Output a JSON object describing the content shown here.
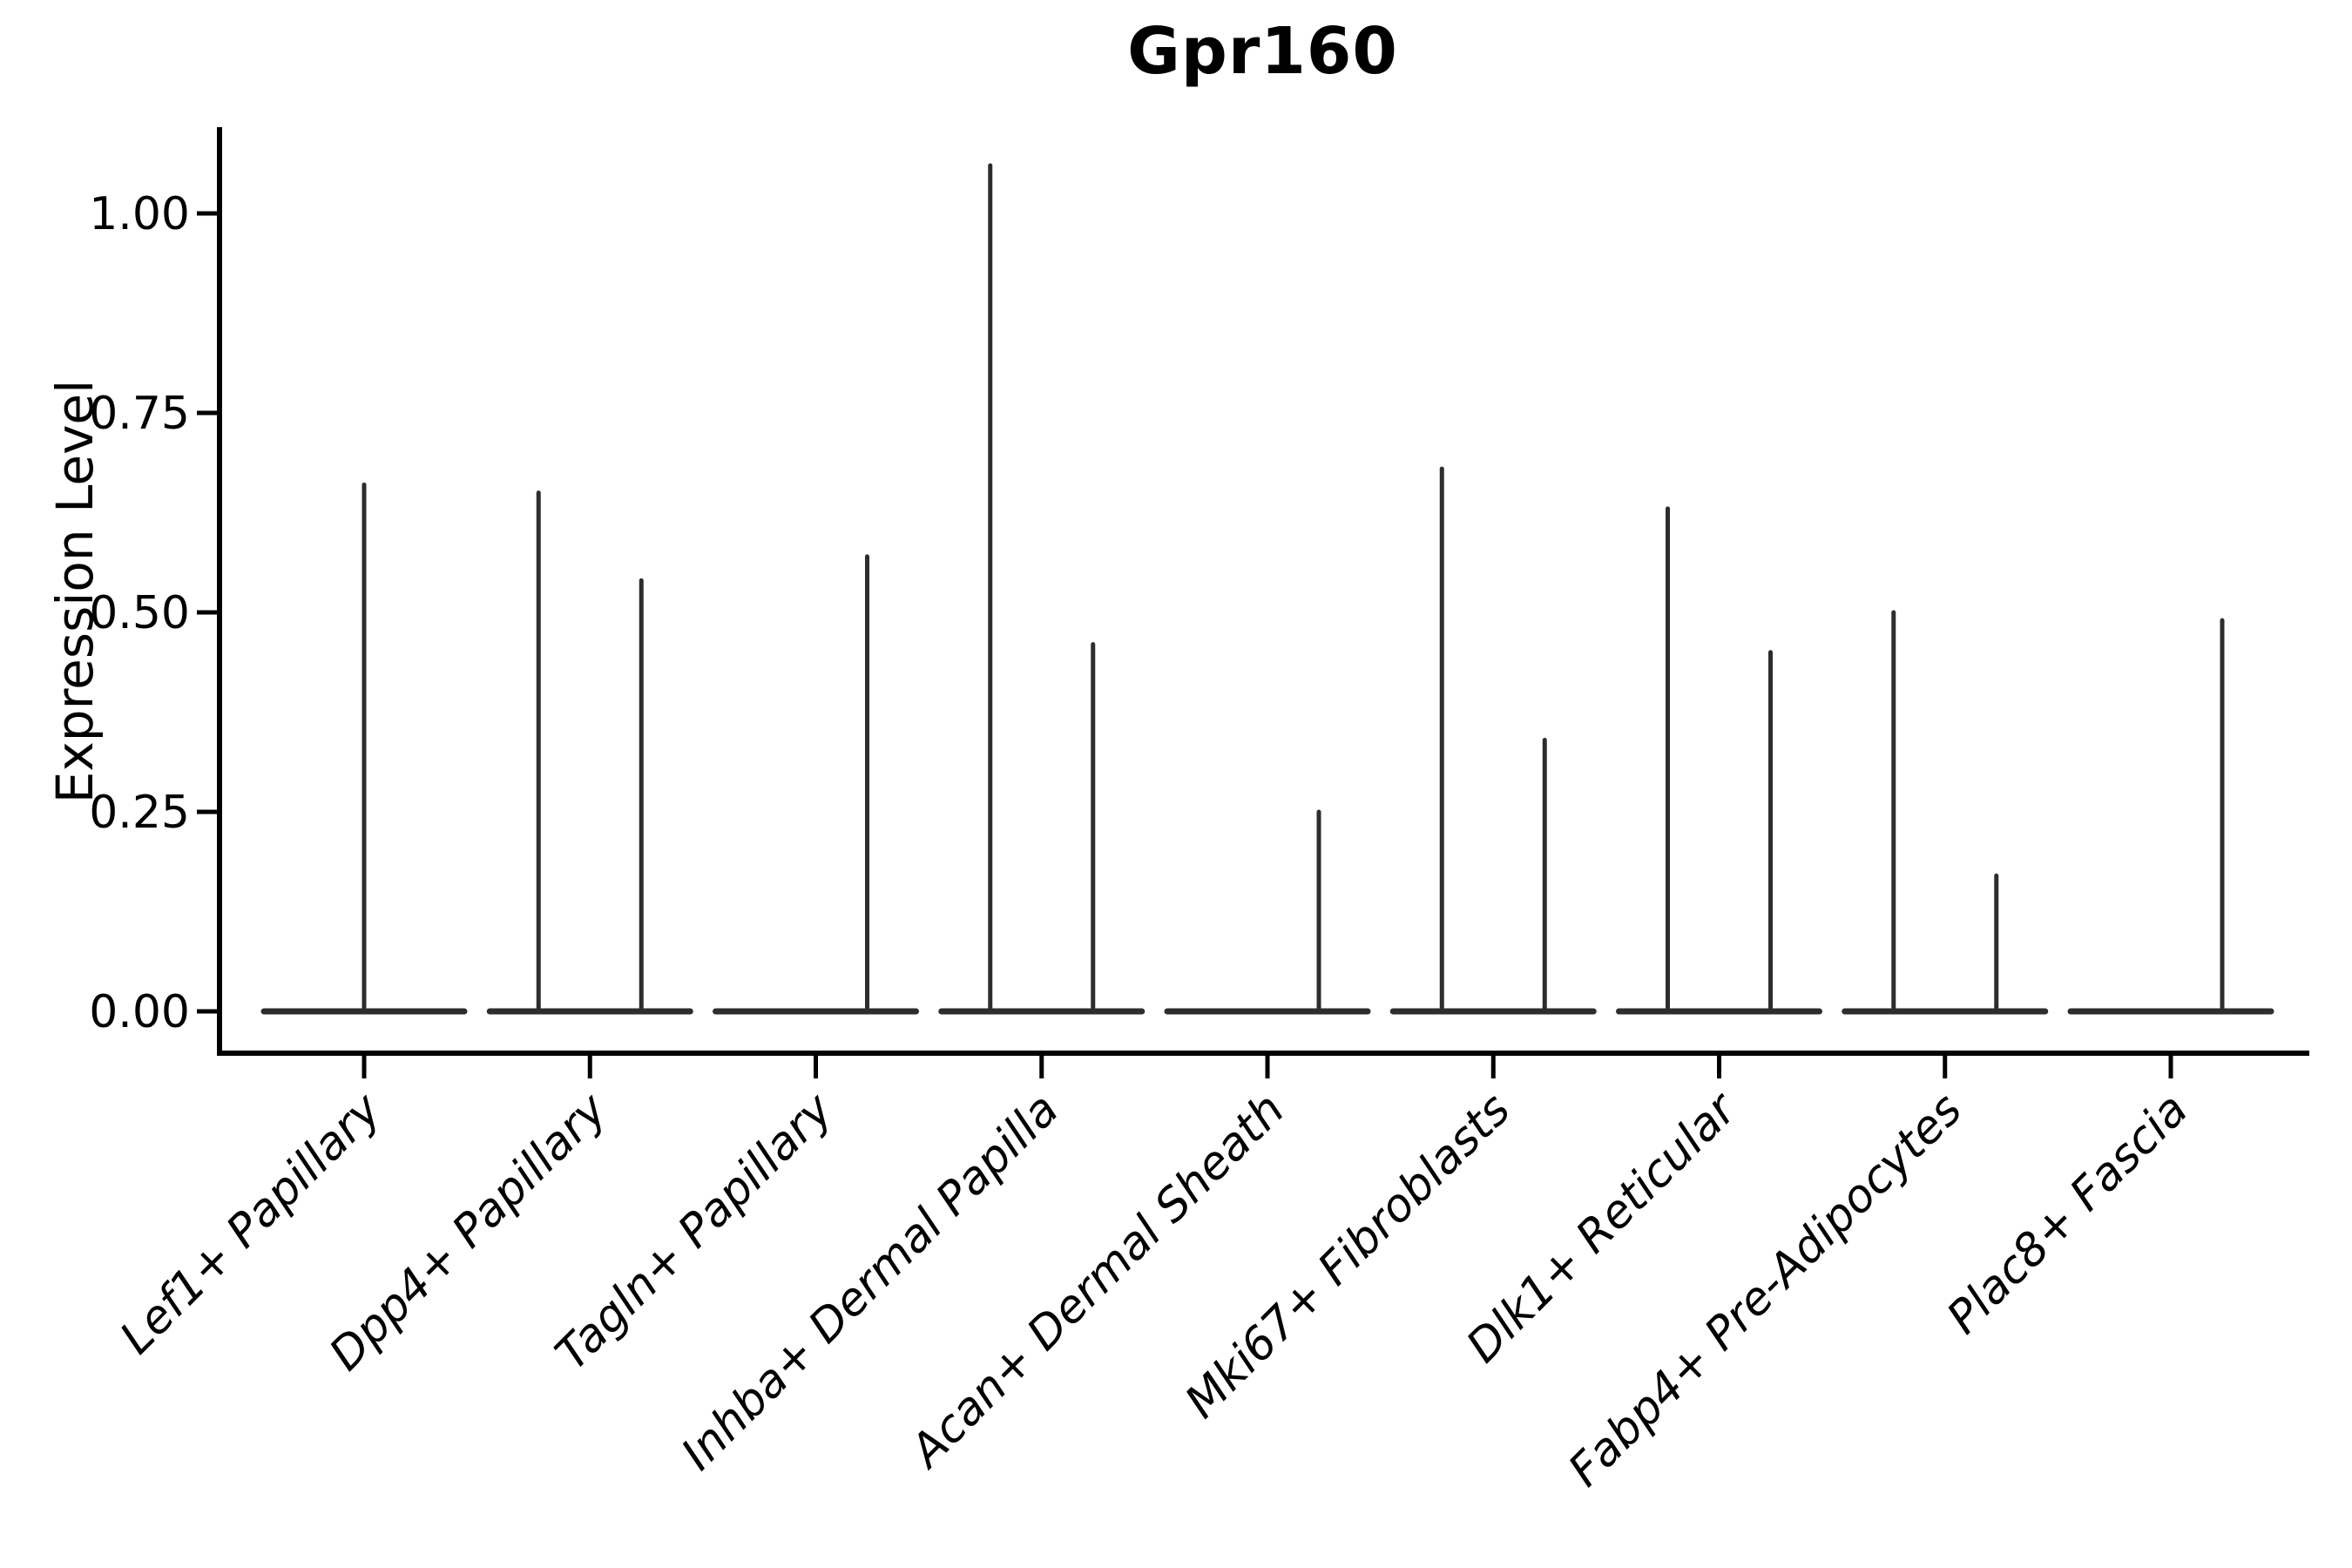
{
  "title": "Gpr160",
  "y_axis": {
    "label": "Expression Level",
    "tick_labels": [
      "0.00",
      "0.25",
      "0.50",
      "0.75",
      "1.00"
    ]
  },
  "chart_data": {
    "type": "violin",
    "title": "Gpr160",
    "xlabel": "",
    "ylabel": "Expression Level",
    "ylim": [
      -0.05,
      1.11
    ],
    "yticks": [
      0,
      0.25,
      0.5,
      0.75,
      1.0
    ],
    "ytick_labels": [
      "0.00",
      "0.25",
      "0.50",
      "0.75",
      "1.00"
    ],
    "grid": false,
    "legend": false,
    "x_tick_rotation": 45,
    "categories": [
      "Lef1+ Papillary",
      "Dpp4+ Papillary",
      "Tagln+ Papillary",
      "Inhba+ Dermal Papilla",
      "Acan+ Dermal Sheath",
      "Mki67+ Fibroblasts",
      "Dlk1+ Reticular",
      "Fabp4+ Pre-Adipocytes",
      "Plac8+ Fascia"
    ],
    "description": "Sparse expression violins: each category shows a flat density base at 0 with thin spikes rising to the maximum expression of each split group.",
    "violins": [
      {
        "category": "Lef1+ Papillary",
        "groups": [
          {
            "position": "center",
            "max": 0.66
          }
        ]
      },
      {
        "category": "Dpp4+ Papillary",
        "groups": [
          {
            "position": "left",
            "max": 0.65
          },
          {
            "position": "right",
            "max": 0.54
          }
        ]
      },
      {
        "category": "Tagln+ Papillary",
        "groups": [
          {
            "position": "left",
            "max": 0.0
          },
          {
            "position": "right",
            "max": 0.57
          }
        ]
      },
      {
        "category": "Inhba+ Dermal Papilla",
        "groups": [
          {
            "position": "left",
            "max": 1.06
          },
          {
            "position": "right",
            "max": 0.46
          }
        ]
      },
      {
        "category": "Acan+ Dermal Sheath",
        "groups": [
          {
            "position": "left",
            "max": 0.0
          },
          {
            "position": "right",
            "max": 0.25
          }
        ]
      },
      {
        "category": "Mki67+ Fibroblasts",
        "groups": [
          {
            "position": "left",
            "max": 0.68
          },
          {
            "position": "right",
            "max": 0.34
          }
        ]
      },
      {
        "category": "Dlk1+ Reticular",
        "groups": [
          {
            "position": "left",
            "max": 0.63
          },
          {
            "position": "right",
            "max": 0.45
          }
        ]
      },
      {
        "category": "Fabp4+ Pre-Adipocytes",
        "groups": [
          {
            "position": "left",
            "max": 0.5
          },
          {
            "position": "right",
            "max": 0.17
          }
        ]
      },
      {
        "category": "Plac8+ Fascia",
        "groups": [
          {
            "position": "left",
            "max": 0.0
          },
          {
            "position": "right",
            "max": 0.49
          }
        ]
      }
    ],
    "style": {
      "violin_color": "#2d2d2d",
      "axis_color": "#000000",
      "text_color": "#000000",
      "background": "#ffffff"
    }
  }
}
